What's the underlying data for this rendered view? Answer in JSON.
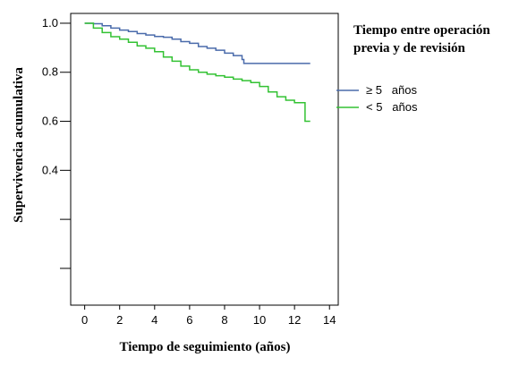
{
  "chart_data": {
    "type": "line",
    "subtype": "kaplan-meier step curve",
    "xlabel": "Tiempo de seguimiento (años)",
    "ylabel": "Supervivencia acumulativa",
    "xlim": [
      -0.8,
      14.5
    ],
    "ylim": [
      -0.15,
      1.04
    ],
    "x_ticks": [
      0,
      2,
      4,
      6,
      8,
      10,
      12,
      14
    ],
    "x_tick_labels": [
      "0",
      "2",
      "4",
      "6",
      "8",
      "10",
      "12",
      "14"
    ],
    "y_ticks": [
      1.0,
      0.8,
      0.6,
      0.4,
      0.2,
      0.0
    ],
    "y_tick_labels": [
      "1.0",
      "0.8",
      "0.6",
      "0.4",
      "",
      ""
    ],
    "grid": false,
    "legend": {
      "title_lines": [
        "Tiempo entre operación",
        "previa y de revisión"
      ],
      "position": "top-right"
    },
    "series": [
      {
        "name": "≥ 5   años",
        "color": "#4a6bab",
        "points": [
          [
            0,
            1.0
          ],
          [
            0.5,
            0.998
          ],
          [
            1.0,
            0.99
          ],
          [
            1.5,
            0.98
          ],
          [
            2.0,
            0.972
          ],
          [
            2.5,
            0.966
          ],
          [
            3.0,
            0.958
          ],
          [
            3.5,
            0.952
          ],
          [
            4.0,
            0.946
          ],
          [
            4.5,
            0.943
          ],
          [
            5.0,
            0.935
          ],
          [
            5.5,
            0.925
          ],
          [
            6.0,
            0.918
          ],
          [
            6.5,
            0.905
          ],
          [
            7.0,
            0.898
          ],
          [
            7.5,
            0.89
          ],
          [
            8.0,
            0.878
          ],
          [
            8.5,
            0.868
          ],
          [
            9.0,
            0.852
          ],
          [
            9.1,
            0.836
          ],
          [
            12.9,
            0.836
          ]
        ]
      },
      {
        "name": "< 5   años",
        "color": "#33c233",
        "points": [
          [
            0,
            1.0
          ],
          [
            0.5,
            0.98
          ],
          [
            1.0,
            0.962
          ],
          [
            1.5,
            0.945
          ],
          [
            2.0,
            0.935
          ],
          [
            2.5,
            0.922
          ],
          [
            3.0,
            0.908
          ],
          [
            3.5,
            0.898
          ],
          [
            4.0,
            0.884
          ],
          [
            4.5,
            0.862
          ],
          [
            5.0,
            0.845
          ],
          [
            5.5,
            0.825
          ],
          [
            6.0,
            0.81
          ],
          [
            6.5,
            0.8
          ],
          [
            7.0,
            0.792
          ],
          [
            7.5,
            0.786
          ],
          [
            8.0,
            0.78
          ],
          [
            8.5,
            0.772
          ],
          [
            9.0,
            0.766
          ],
          [
            9.5,
            0.758
          ],
          [
            10.0,
            0.742
          ],
          [
            10.5,
            0.72
          ],
          [
            11.0,
            0.7
          ],
          [
            11.5,
            0.686
          ],
          [
            12.0,
            0.676
          ],
          [
            12.5,
            0.676
          ],
          [
            12.6,
            0.6
          ],
          [
            12.9,
            0.6
          ]
        ]
      }
    ]
  }
}
